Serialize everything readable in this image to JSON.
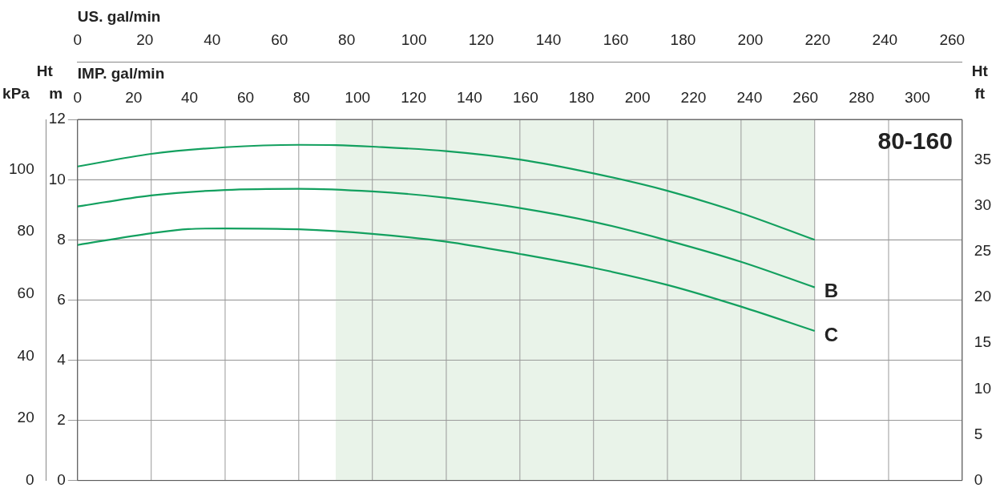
{
  "chart_data": {
    "type": "line",
    "title": "80-160",
    "xlabel": "IMP. gal/min",
    "x2label": "US. gal/min",
    "ylabel": "Ht m",
    "y2label": "Ht ft",
    "y3label": "kPa",
    "xlim": [
      0,
      316
    ],
    "xticks": [
      0,
      20,
      40,
      60,
      80,
      100,
      120,
      140,
      160,
      180,
      200,
      220,
      240,
      260,
      280,
      300
    ],
    "x2lim": [
      0,
      263
    ],
    "x2ticks": [
      0,
      20,
      40,
      60,
      80,
      100,
      120,
      140,
      160,
      180,
      200,
      220,
      240,
      260
    ],
    "ref_lines": [
      {
        "axis": "x",
        "value": 26.3
      },
      {
        "axis": "x",
        "value": 52.7
      },
      {
        "axis": "x",
        "value": 79
      },
      {
        "axis": "x",
        "value": 105.3
      },
      {
        "axis": "x",
        "value": 131.7
      },
      {
        "axis": "x",
        "value": 158
      },
      {
        "axis": "x",
        "value": 184.3
      },
      {
        "axis": "x",
        "value": 210.7
      },
      {
        "axis": "x",
        "value": 237
      },
      {
        "axis": "x",
        "value": 263.3
      },
      {
        "axis": "x",
        "value": 289.7
      }
    ],
    "ylim": [
      0,
      12
    ],
    "yticks": [
      0,
      2,
      4,
      6,
      8,
      10,
      12
    ],
    "y2lim": [
      0,
      39.4
    ],
    "y2ticks": [
      0,
      5,
      10,
      15,
      20,
      25,
      30,
      35
    ],
    "y3lim": [
      0,
      116
    ],
    "y3ticks": [
      0,
      20,
      40,
      60,
      80,
      100
    ],
    "grid": "y",
    "marker": "none",
    "line_style": "solid",
    "bands": [
      {
        "axis": "x",
        "from": 92.2,
        "to": 263.3,
        "color": "#e9f3e9"
      }
    ],
    "series": [
      {
        "color": "#13a05f",
        "x": [
          0,
          26.3,
          52.7,
          79,
          92.2,
          105.3,
          131.7,
          158,
          184.3,
          210.7,
          237,
          263.3
        ],
        "values": [
          10.44,
          10.86,
          11.08,
          11.16,
          11.15,
          11.1,
          10.95,
          10.67,
          10.21,
          9.63,
          8.89,
          8.0
        ]
      },
      {
        "name": "B",
        "color": "#13a05f",
        "x": [
          0,
          26.3,
          52.7,
          79,
          105.3,
          131.7,
          158,
          184.3,
          210.7,
          237,
          263.3
        ],
        "values": [
          9.11,
          9.48,
          9.66,
          9.7,
          9.61,
          9.4,
          9.06,
          8.6,
          7.98,
          7.27,
          6.42
        ]
      },
      {
        "name": "C",
        "color": "#13a05f",
        "x": [
          0,
          26.3,
          39.5,
          52.7,
          79,
          105.3,
          131.7,
          158,
          184.3,
          210.7,
          237,
          263.3
        ],
        "values": [
          7.83,
          8.22,
          8.36,
          8.38,
          8.35,
          8.2,
          7.94,
          7.53,
          7.07,
          6.5,
          5.78,
          4.97
        ]
      }
    ]
  }
}
